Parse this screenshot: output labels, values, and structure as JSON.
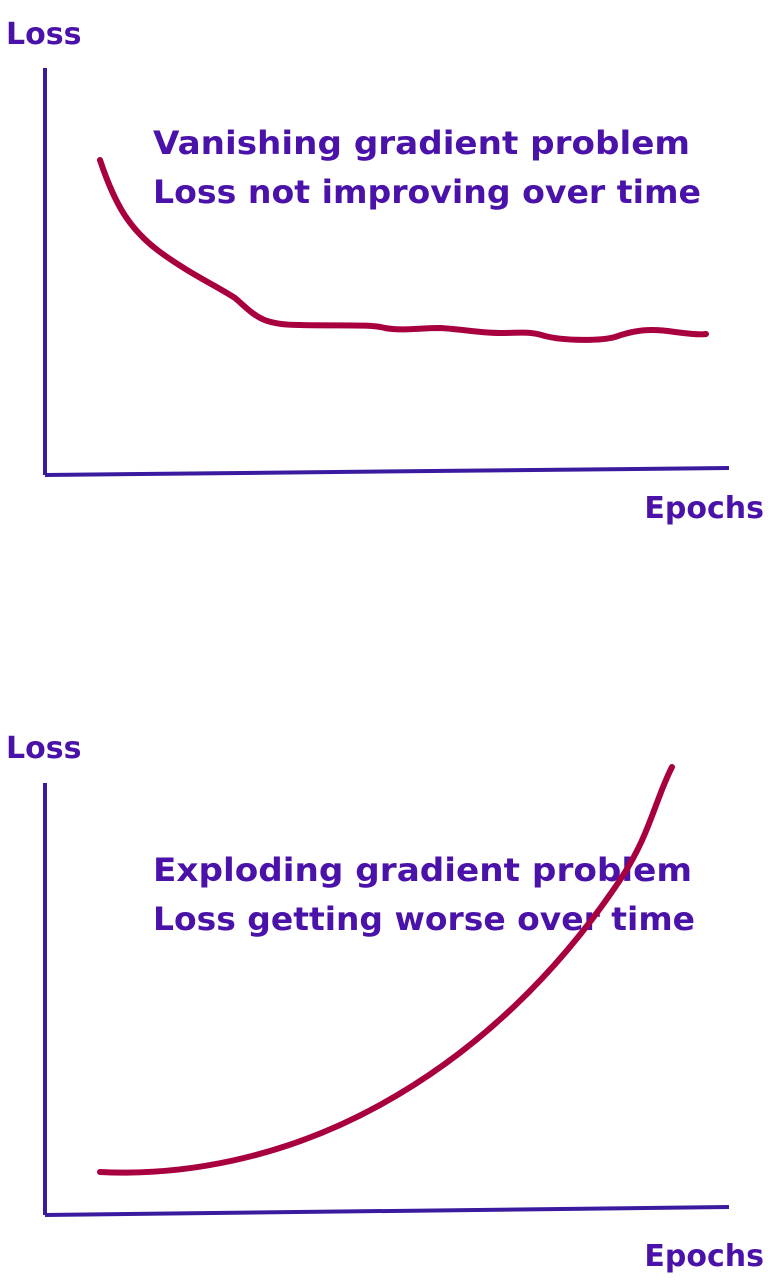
{
  "panels": [
    {
      "y_label": "Loss",
      "x_label": "Epochs",
      "title": "Vanishing gradient problem",
      "subtitle": "Loss not improving over time"
    },
    {
      "y_label": "Loss",
      "x_label": "Epochs",
      "title": "Exploding gradient problem",
      "subtitle": "Loss getting worse over time"
    }
  ]
}
